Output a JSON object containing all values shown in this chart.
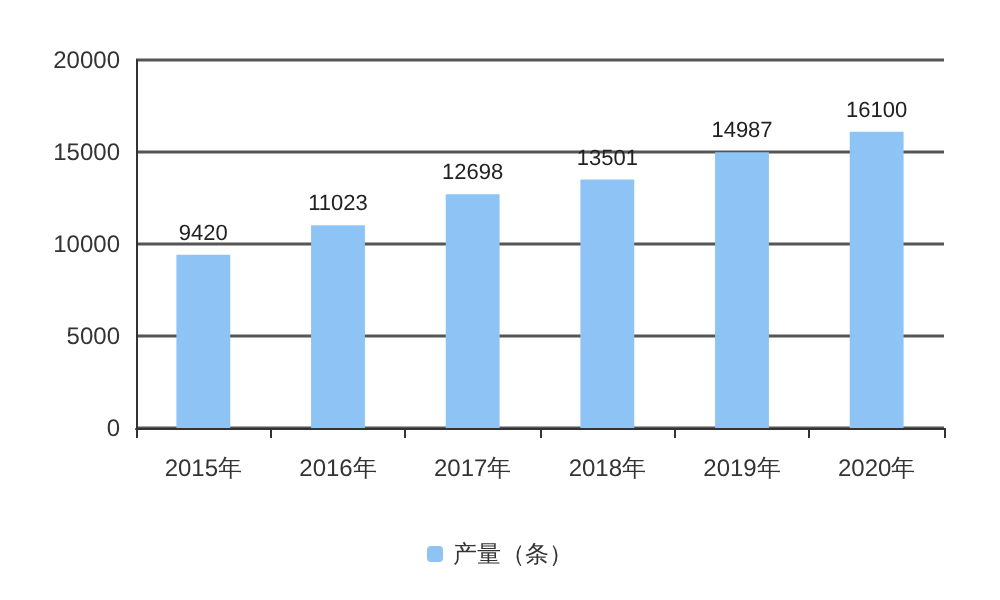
{
  "chart_data": {
    "type": "bar",
    "categories": [
      "2015年",
      "2016年",
      "2017年",
      "2018年",
      "2019年",
      "2020年"
    ],
    "series": [
      {
        "name": "产量（条）",
        "color": "#8ec4f5",
        "values": [
          9420,
          11023,
          12698,
          13501,
          14987,
          16100
        ]
      }
    ],
    "ylim": [
      0,
      20000
    ],
    "yticks": [
      0,
      5000,
      10000,
      15000,
      20000
    ],
    "grid": "y",
    "legend": "bottom",
    "data_labels": true
  }
}
